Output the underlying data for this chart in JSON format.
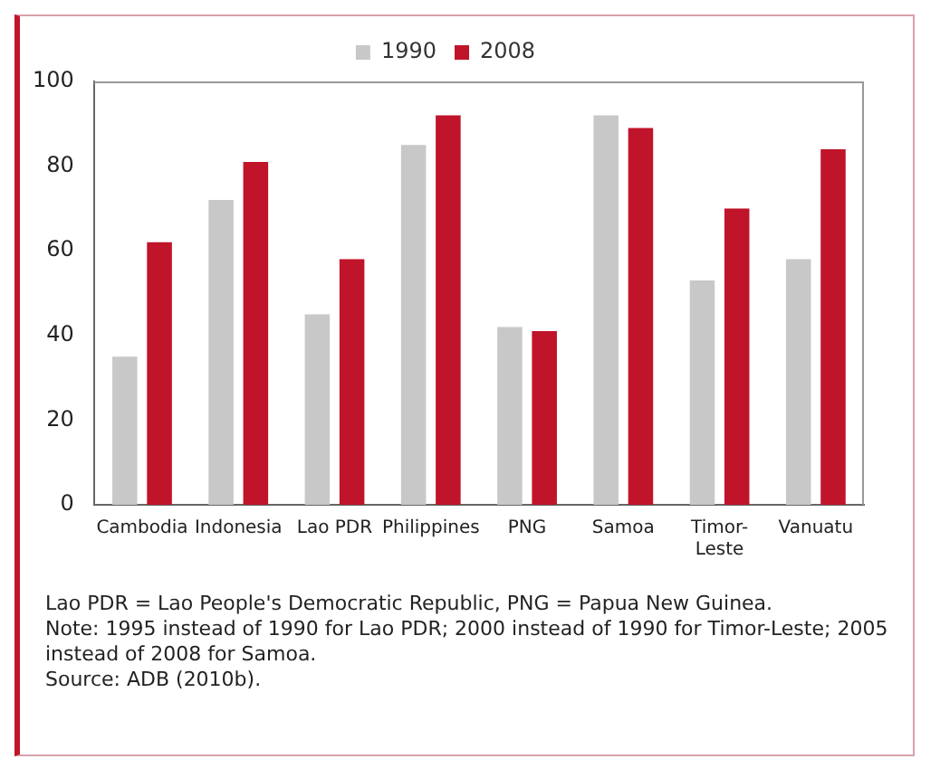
{
  "chart_data": {
    "type": "bar",
    "categories": [
      "Cambodia",
      "Indonesia",
      "Lao PDR",
      "Philippines",
      "PNG",
      "Samoa",
      "Timor-Leste",
      "Vanuatu"
    ],
    "series": [
      {
        "name": "1990",
        "color": "#c8c8c8",
        "values": [
          35,
          72,
          45,
          85,
          42,
          92,
          53,
          58
        ]
      },
      {
        "name": "2008",
        "color": "#c0142a",
        "values": [
          62,
          81,
          58,
          92,
          41,
          89,
          70,
          84
        ]
      }
    ],
    "ylim": [
      0,
      100
    ],
    "yticks": [
      0,
      20,
      40,
      60,
      80,
      100
    ],
    "grid": false,
    "legend": "top",
    "annotations": [
      "Lao PDR = Lao People's Democratic Republic, PNG = Papua New Guinea.",
      "Note: 1995 instead of 1990 for Lao PDR; 2000 instead of 1990 for Timor-Leste; 2005 instead of 2008 for Samoa.",
      "Source: ADB (2010b)."
    ]
  }
}
